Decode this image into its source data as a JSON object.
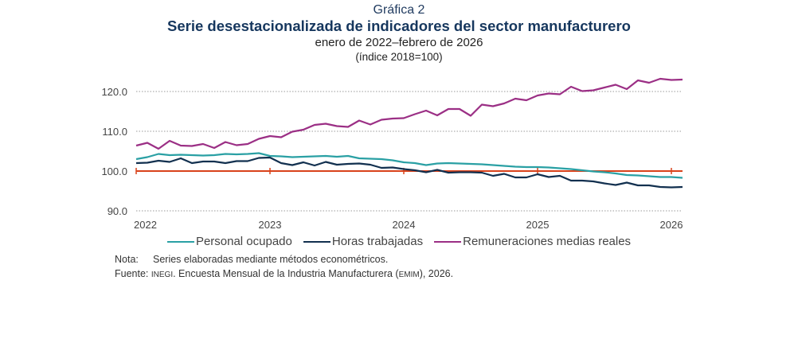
{
  "header": {
    "label": "Gráfica 2",
    "title": "Serie desestacionalizada de indicadores del sector manufacturero",
    "subtitle": "enero de 2022–febrero de 2026",
    "unit": "(índice 2018=100)"
  },
  "notes": {
    "nota_key": "Nota:",
    "nota_text": "Series elaboradas mediante métodos econométricos.",
    "fuente_key": "Fuente:",
    "fuente_org": "INEGI",
    "fuente_text_1": ". Encuesta Mensual de la Industria Manufacturera (",
    "fuente_abbr": "EMIM",
    "fuente_text_2": "), 2026."
  },
  "chart_data": {
    "type": "line",
    "title": "Serie desestacionalizada de indicadores del sector manufacturero",
    "xlabel": "",
    "ylabel": "(índice 2018=100)",
    "x_start": "2022-01",
    "x_end": "2026-02",
    "x_ticks": [
      "2022",
      "2023",
      "2024",
      "2025",
      "2026"
    ],
    "y_ticks": [
      "90.0",
      "100.0",
      "110.0",
      "120.0"
    ],
    "ylim": [
      90,
      120
    ],
    "grid": true,
    "legend": "bottom",
    "reference_line": {
      "value": 100,
      "color": "#d9421b"
    },
    "series": [
      {
        "name": "Personal ocupado",
        "color": "#2aa0a4",
        "values": [
          103.0,
          103.5,
          104.3,
          104.0,
          104.1,
          104.0,
          103.9,
          104.0,
          104.3,
          104.2,
          104.3,
          104.5,
          103.8,
          103.7,
          103.5,
          103.6,
          103.7,
          103.8,
          103.6,
          103.8,
          103.2,
          103.1,
          103.0,
          102.7,
          102.2,
          102.0,
          101.5,
          101.9,
          102.0,
          101.9,
          101.8,
          101.7,
          101.5,
          101.3,
          101.1,
          101.0,
          101.0,
          100.9,
          100.7,
          100.5,
          100.2,
          99.9,
          99.7,
          99.4,
          99.0,
          98.9,
          98.7,
          98.5,
          98.5,
          98.3
        ]
      },
      {
        "name": "Horas trabajadas",
        "color": "#12304f",
        "values": [
          102.0,
          102.1,
          102.6,
          102.3,
          103.2,
          102.0,
          102.4,
          102.4,
          102.0,
          102.5,
          102.5,
          103.3,
          103.4,
          102.0,
          101.5,
          102.2,
          101.4,
          102.3,
          101.6,
          101.8,
          101.9,
          101.6,
          100.8,
          100.9,
          100.5,
          100.2,
          99.7,
          100.3,
          99.6,
          99.7,
          99.7,
          99.6,
          98.8,
          99.3,
          98.4,
          98.4,
          99.2,
          98.5,
          98.8,
          97.6,
          97.6,
          97.4,
          96.9,
          96.5,
          97.1,
          96.4,
          96.4,
          96.0,
          95.9,
          96.0
        ]
      },
      {
        "name": "Remuneraciones medias reales",
        "color": "#9b2f85",
        "values": [
          106.4,
          107.1,
          105.6,
          107.6,
          106.4,
          106.3,
          106.8,
          105.8,
          107.3,
          106.5,
          106.8,
          108.1,
          108.8,
          108.5,
          109.9,
          110.4,
          111.6,
          111.9,
          111.3,
          111.1,
          112.7,
          111.7,
          112.9,
          113.2,
          113.3,
          114.3,
          115.2,
          114.0,
          115.6,
          115.6,
          113.9,
          116.7,
          116.3,
          117.0,
          118.2,
          117.8,
          119.0,
          119.5,
          119.3,
          121.2,
          120.1,
          120.3,
          121.0,
          121.7,
          120.6,
          122.8,
          122.2,
          123.2,
          122.9,
          123.0
        ]
      }
    ]
  }
}
